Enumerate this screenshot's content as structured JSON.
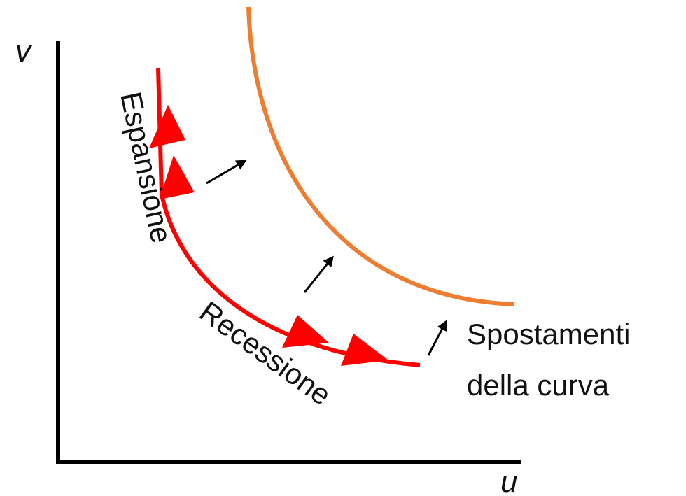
{
  "axes": {
    "y_label": "v",
    "x_label": "u"
  },
  "labels": {
    "expansion": "Espansione",
    "recession": "Recessione"
  },
  "annotation": {
    "lines": [
      "Spostamenti",
      "della curva"
    ]
  }
}
